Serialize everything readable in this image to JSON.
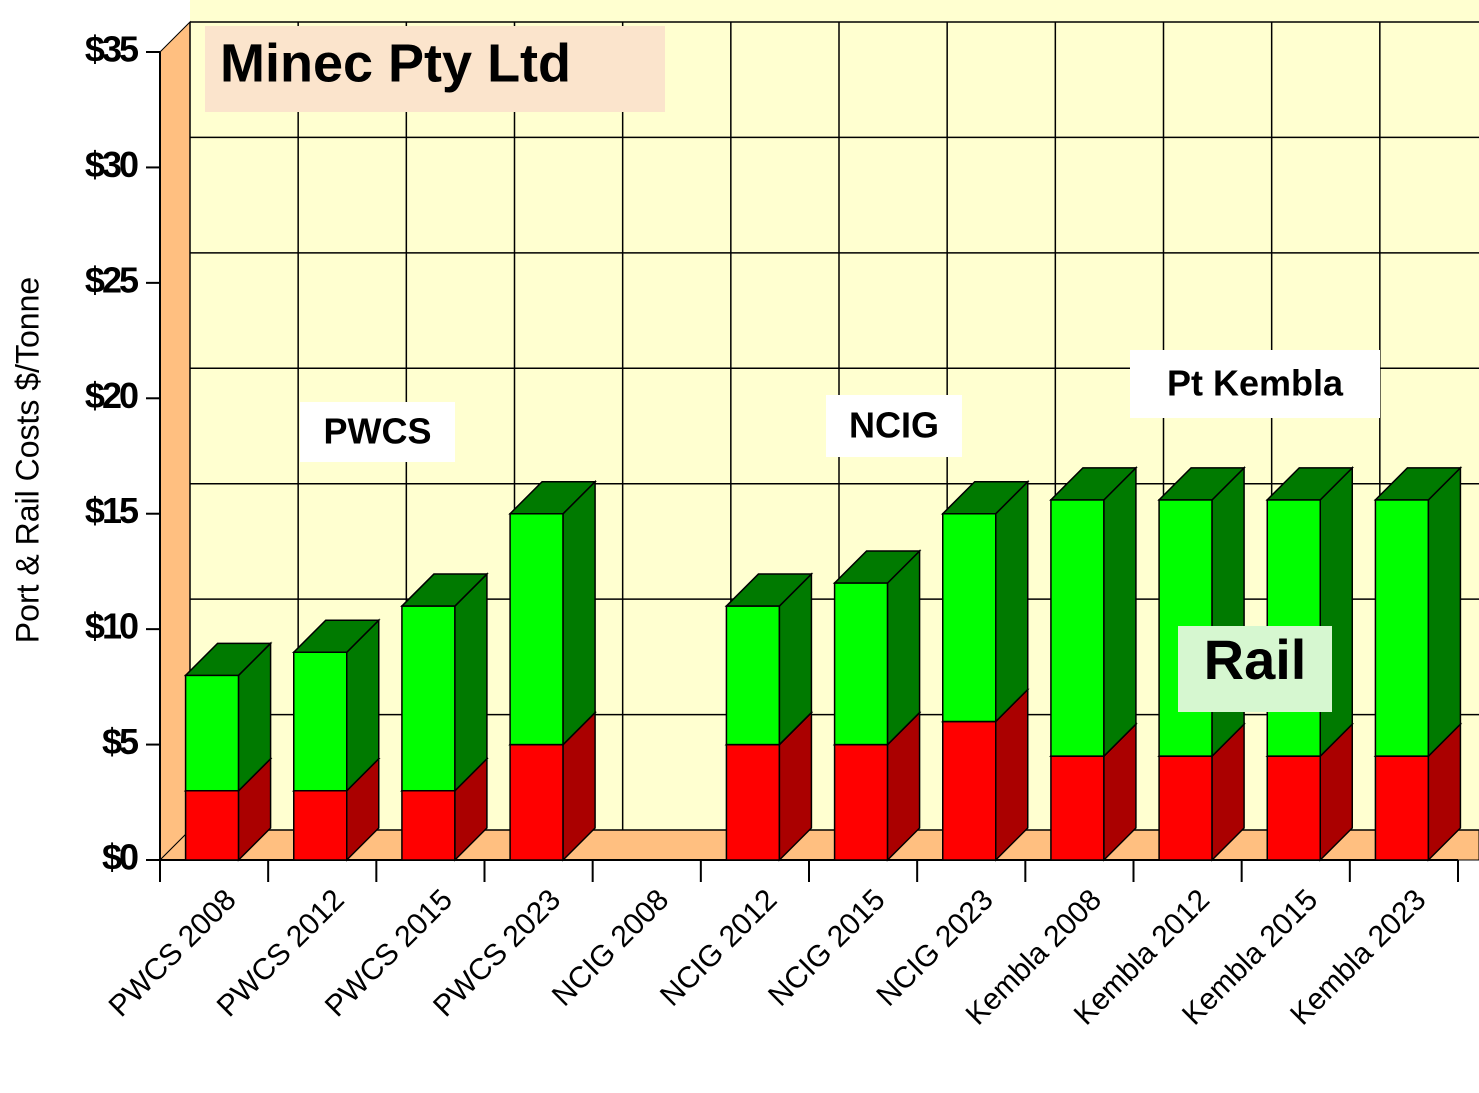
{
  "chart_data": {
    "type": "bar3d_stacked",
    "title": "Minec Pty Ltd",
    "ylabel": "Port & Rail Costs $/Tonne",
    "categories": [
      "PWCS 2008",
      "PWCS 2012",
      "PWCS 2015",
      "PWCS 2023",
      "NCIG 2008",
      "NCIG 2012",
      "NCIG 2015",
      "NCIG 2023",
      "Kembla 2008",
      "Kembla 2012",
      "Kembla 2015",
      "Kembla 2023"
    ],
    "series": [
      {
        "color": "#ff0000",
        "side_color": "#aa0000",
        "values": [
          3,
          3,
          3,
          5,
          null,
          5,
          5,
          6,
          4.5,
          4.5,
          4.5,
          4.5
        ]
      },
      {
        "name": "Rail",
        "color": "#00ff00",
        "side_color": "#007a00",
        "values": [
          5,
          6,
          8,
          10,
          null,
          6,
          7,
          9,
          11.1,
          11.1,
          11.1,
          11.1
        ]
      }
    ],
    "annotations": [
      "PWCS",
      "NCIG",
      "Pt Kembla"
    ],
    "ylim": [
      0,
      35
    ],
    "yticks": [
      {
        "value": 0,
        "label": "$0"
      },
      {
        "value": 5,
        "label": "$5"
      },
      {
        "value": 10,
        "label": "$10"
      },
      {
        "value": 15,
        "label": "$15"
      },
      {
        "value": 20,
        "label": "$20"
      },
      {
        "value": 25,
        "label": "$25"
      },
      {
        "value": 30,
        "label": "$30"
      },
      {
        "value": 35,
        "label": "$35"
      }
    ],
    "grid": true
  }
}
